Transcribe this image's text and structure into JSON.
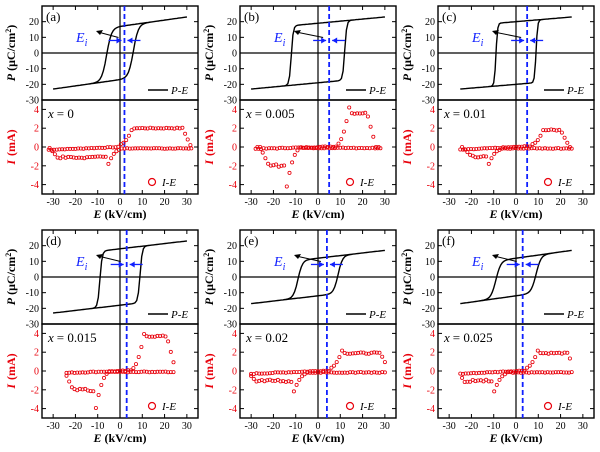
{
  "colors": {
    "pe": "#000000",
    "ie": "#e8000b",
    "ei_line": "#1020ff",
    "frame": "#000000"
  },
  "axis_text": {
    "p_label": "P",
    "p_unit": "(μC/cm",
    "p_unit_sup": "2",
    "p_unit_close": ")",
    "i_label": "I",
    "i_unit": "(mA)",
    "e_label": "E",
    "e_unit": "(kV/cm)",
    "pe_legend": "P-E",
    "ie_legend": "I-E",
    "ei_label": "E",
    "ei_sub": "i",
    "x_prefix": "x"
  },
  "chart_data": [
    {
      "type": "line",
      "panel": "(a)",
      "x_label_value": "= 0",
      "e_i": 2,
      "p_ylim": [
        -30,
        30
      ],
      "p_yticks": [
        -30,
        -20,
        -10,
        0,
        10,
        20
      ],
      "i_ylim": [
        -5,
        5
      ],
      "i_yticks": [
        -4,
        -2,
        0,
        2,
        4
      ],
      "xlim": [
        -35,
        35
      ],
      "xticks": [
        -30,
        -20,
        -10,
        0,
        10,
        20,
        30
      ],
      "pe": {
        "emax": 30,
        "pmax": 23,
        "pr": 17,
        "ec": 6,
        "width": 2.2,
        "tail": 4
      },
      "ie": {
        "emax": 32,
        "emin": -32,
        "peak_e": 6,
        "peak_i": 2,
        "plateau": 2.0,
        "base": 0.3,
        "noise": 0.2,
        "fall_e": 28
      }
    },
    {
      "type": "line",
      "panel": "(b)",
      "x_label_value": "= 0.005",
      "e_i": 5,
      "p_ylim": [
        -30,
        30
      ],
      "p_yticks": [
        -30,
        -20,
        -10,
        0,
        10,
        20
      ],
      "i_ylim": [
        -5,
        5
      ],
      "i_yticks": [
        -4,
        -2,
        0,
        2,
        4
      ],
      "xlim": [
        -35,
        35
      ],
      "xticks": [
        -30,
        -20,
        -10,
        0,
        10,
        20,
        30
      ],
      "pe": {
        "emax": 30,
        "pmax": 23,
        "pr": 19,
        "ec": 12,
        "width": 0.9,
        "tail": 5
      },
      "ie": {
        "emax": 28,
        "emin": -28,
        "peak_e": 14,
        "peak_i": 4,
        "plateau": 3.6,
        "base": 0.2,
        "noise": 0.3,
        "fall_e": 22
      }
    },
    {
      "type": "line",
      "panel": "(c)",
      "x_label_value": "= 0.01",
      "e_i": 5,
      "p_ylim": [
        -30,
        30
      ],
      "p_yticks": [
        -30,
        -20,
        -10,
        0,
        10,
        20
      ],
      "i_ylim": [
        -5,
        5
      ],
      "i_yticks": [
        -4,
        -2,
        0,
        2,
        4
      ],
      "xlim": [
        -35,
        35
      ],
      "xticks": [
        -30,
        -20,
        -10,
        0,
        10,
        20,
        30
      ],
      "pe": {
        "emax": 25,
        "pmax": 23,
        "pr": 20,
        "ec": 9,
        "width": 0.7,
        "tail": 4
      },
      "ie": {
        "emax": 25,
        "emin": -25,
        "peak_e": 13,
        "peak_i": 2,
        "plateau": 1.8,
        "base": 0.3,
        "noise": 0.25,
        "fall_e": 20
      }
    },
    {
      "type": "line",
      "panel": "(d)",
      "x_label_value": "= 0.015",
      "e_i": 3,
      "p_ylim": [
        -30,
        30
      ],
      "p_yticks": [
        -30,
        -20,
        -10,
        0,
        10,
        20
      ],
      "i_ylim": [
        -5,
        5
      ],
      "i_yticks": [
        -4,
        -2,
        0,
        2,
        4
      ],
      "xlim": [
        -35,
        35
      ],
      "xticks": [
        -30,
        -20,
        -10,
        0,
        10,
        20,
        30
      ],
      "pe": {
        "emax": 30,
        "pmax": 23,
        "pr": 18,
        "ec": 9,
        "width": 1.0,
        "tail": 5
      },
      "ie": {
        "emax": 24,
        "emin": -24,
        "peak_e": 11,
        "peak_i": 4,
        "plateau": 3.7,
        "base": 0.2,
        "noise": 0.3,
        "fall_e": 21
      }
    },
    {
      "type": "line",
      "panel": "(e)",
      "x_label_value": "= 0.02",
      "e_i": 4,
      "p_ylim": [
        -30,
        30
      ],
      "p_yticks": [
        -30,
        -20,
        -10,
        0,
        10,
        20
      ],
      "i_ylim": [
        -5,
        5
      ],
      "i_yticks": [
        -4,
        -2,
        0,
        2,
        4
      ],
      "xlim": [
        -35,
        35
      ],
      "xticks": [
        -30,
        -20,
        -10,
        0,
        10,
        20,
        30
      ],
      "pe": {
        "emax": 30,
        "pmax": 17,
        "pr": 12,
        "ec": 9,
        "width": 2.0,
        "tail": 6
      },
      "ie": {
        "emax": 30,
        "emin": -30,
        "peak_e": 11,
        "peak_i": 2,
        "plateau": 1.9,
        "base": 0.3,
        "noise": 0.3,
        "fall_e": 28
      }
    },
    {
      "type": "line",
      "panel": "(f)",
      "x_label_value": "= 0.025",
      "e_i": 3,
      "p_ylim": [
        -30,
        30
      ],
      "p_yticks": [
        -30,
        -20,
        -10,
        0,
        10,
        20
      ],
      "i_ylim": [
        -5,
        5
      ],
      "i_yticks": [
        -4,
        -2,
        0,
        2,
        4
      ],
      "xlim": [
        -35,
        35
      ],
      "xticks": [
        -30,
        -20,
        -10,
        0,
        10,
        20,
        30
      ],
      "pe": {
        "emax": 25,
        "pmax": 17,
        "pr": 12,
        "ec": 9,
        "width": 2.2,
        "tail": 5
      },
      "ie": {
        "emax": 25,
        "emin": -25,
        "peak_e": 10,
        "peak_i": 2,
        "plateau": 1.9,
        "base": 0.3,
        "noise": 0.25,
        "fall_e": 23
      }
    }
  ]
}
